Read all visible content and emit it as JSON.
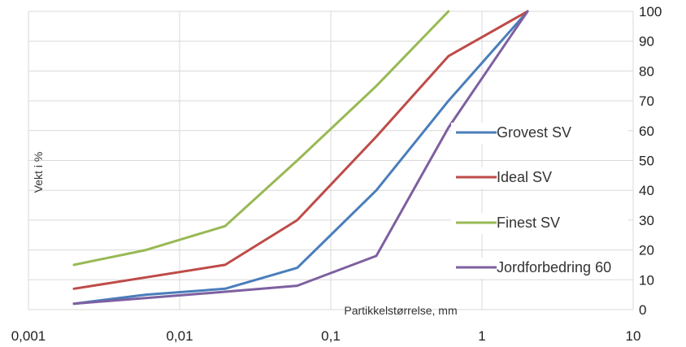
{
  "chart_data": {
    "type": "line",
    "title": "",
    "xlabel": "Partikkelstørrelse, mm",
    "ylabel": "Vekt i %",
    "x_scale": "log",
    "xlim": [
      0.001,
      10
    ],
    "ylim": [
      0,
      100
    ],
    "x_ticks": [
      "0,001",
      "0,01",
      "0,1",
      "1",
      "10"
    ],
    "y_ticks": [
      "0",
      "10",
      "20",
      "30",
      "40",
      "50",
      "60",
      "70",
      "80",
      "90",
      "100"
    ],
    "y_axis_side": "right",
    "grid": true,
    "legend_placement": "right",
    "series": [
      {
        "name": "Grovest SV",
        "color": "#4a7ebb",
        "points": [
          [
            0.002,
            2
          ],
          [
            0.006,
            5
          ],
          [
            0.02,
            7
          ],
          [
            0.06,
            14
          ],
          [
            0.2,
            40
          ],
          [
            0.6,
            70
          ],
          [
            2,
            100
          ]
        ]
      },
      {
        "name": "Ideal SV",
        "color": "#be4b48",
        "points": [
          [
            0.002,
            7
          ],
          [
            0.02,
            15
          ],
          [
            0.06,
            30
          ],
          [
            0.2,
            58
          ],
          [
            0.6,
            85
          ],
          [
            2,
            100
          ]
        ]
      },
      {
        "name": "Finest SV",
        "color": "#98b954",
        "points": [
          [
            0.002,
            15
          ],
          [
            0.006,
            20
          ],
          [
            0.02,
            28
          ],
          [
            0.06,
            50
          ],
          [
            0.2,
            75
          ],
          [
            0.6,
            100
          ]
        ]
      },
      {
        "name": "Jordforbedring 60",
        "color": "#7d60a0",
        "points": [
          [
            0.002,
            2
          ],
          [
            0.02,
            6
          ],
          [
            0.06,
            8
          ],
          [
            0.2,
            18
          ],
          [
            0.6,
            61
          ],
          [
            2,
            100
          ]
        ]
      }
    ]
  }
}
